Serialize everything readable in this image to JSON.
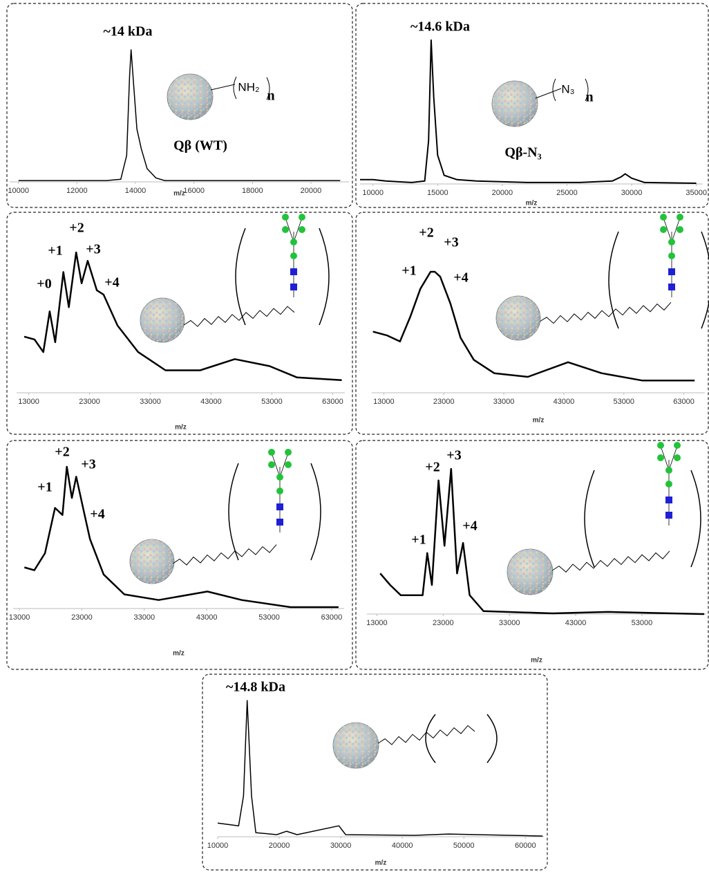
{
  "chart_data": [
    {
      "type": "line",
      "annotations": [
        "~14 kDa"
      ],
      "structure_labels": [
        "Qβ (WT)",
        "NH₂",
        "n"
      ],
      "xlabel": "m/z",
      "color": "#000000",
      "x": [
        10000,
        11000,
        12000,
        13000,
        13500,
        13700,
        13800,
        13850,
        13950,
        14050,
        14200,
        14400,
        14700,
        15000,
        16000,
        18000,
        20000,
        21000
      ],
      "values": [
        1,
        1,
        1,
        1,
        2,
        20,
        80,
        100,
        70,
        40,
        25,
        10,
        3,
        1,
        1,
        1,
        1,
        1
      ],
      "xlim": [
        9700,
        21300
      ],
      "xticks": [
        10000,
        12000,
        14000,
        16000,
        18000,
        20000
      ]
    },
    {
      "type": "line",
      "annotations": [
        "~14.6 kDa"
      ],
      "structure_labels": [
        "Qβ-N₃",
        "N₃",
        "n"
      ],
      "xlabel": "m/z",
      "color": "#000000",
      "x": [
        9000,
        10000,
        11000,
        12000,
        13000,
        14000,
        14300,
        14500,
        14700,
        15000,
        15500,
        16500,
        18000,
        22000,
        26000,
        28500,
        29200,
        29500,
        30000,
        31000,
        35000
      ],
      "values": [
        3,
        3,
        2,
        1.5,
        1,
        2,
        30,
        100,
        60,
        20,
        6,
        3,
        2,
        1,
        1,
        2,
        5,
        7,
        4,
        1,
        0.5
      ],
      "xlim": [
        9000,
        35500
      ],
      "xticks": [
        10000,
        15000,
        20000,
        25000,
        30000,
        35000
      ]
    },
    {
      "type": "line",
      "annotations": [
        "+0",
        "+1",
        "+2",
        "+3",
        "+4"
      ],
      "xlabel": "m/z",
      "color": "#000000",
      "x": [
        12250,
        13950,
        15400,
        16450,
        17350,
        18700,
        19600,
        20800,
        21700,
        22700,
        24200,
        25300,
        27600,
        31000,
        35500,
        41200,
        46900,
        52600,
        57100,
        64500
      ],
      "values": [
        40,
        38,
        29,
        58,
        36,
        86,
        61,
        100,
        78,
        94,
        73,
        70,
        48,
        29,
        16,
        16,
        24,
        19,
        11,
        9
      ],
      "xlim": [
        11000,
        65000
      ],
      "xticks": [
        13000,
        23000,
        33000,
        43000,
        53000,
        63000
      ]
    },
    {
      "type": "line",
      "annotations": [
        "+1",
        "+2",
        "+3",
        "+4"
      ],
      "xlabel": "m/z",
      "color": "#000000",
      "x": [
        11200,
        13500,
        15700,
        17400,
        19100,
        20800,
        21500,
        22400,
        24100,
        25800,
        28000,
        31400,
        37000,
        43700,
        49300,
        56100,
        64800
      ],
      "values": [
        50,
        47,
        42,
        62,
        85,
        99,
        99,
        95,
        73,
        45,
        27,
        16,
        13,
        25,
        16,
        10,
        10
      ],
      "xlim": [
        11000,
        66500
      ],
      "xticks": [
        13000,
        23000,
        33000,
        43000,
        53000,
        63000
      ]
    },
    {
      "type": "line",
      "annotations": [
        "+1",
        "+2",
        "+3",
        "+4"
      ],
      "xlabel": "m/z",
      "color": "#000000",
      "x": [
        13800,
        15400,
        17100,
        18700,
        19900,
        20600,
        21400,
        22100,
        23200,
        24300,
        26500,
        29800,
        35300,
        43100,
        48600,
        56400,
        64100
      ],
      "values": [
        29,
        27,
        39,
        71,
        66,
        100,
        78,
        93,
        71,
        49,
        24,
        10,
        6,
        12,
        6,
        1,
        1
      ],
      "xlim": [
        12000,
        65000
      ],
      "xticks": [
        13000,
        23000,
        33000,
        43000,
        53000,
        63000
      ]
    },
    {
      "type": "line",
      "annotations": [
        "+1",
        "+2",
        "+3",
        "+4"
      ],
      "xlabel": "m/z",
      "color": "#000000",
      "x": [
        13500,
        15000,
        16600,
        18700,
        19900,
        20600,
        21300,
        22300,
        23200,
        24200,
        25100,
        26000,
        27000,
        29100,
        39500,
        47900,
        62400
      ],
      "values": [
        28,
        20,
        13,
        13,
        13,
        42,
        20,
        92,
        47,
        100,
        28,
        49,
        13,
        2,
        0.5,
        1.5,
        0
      ],
      "xlim": [
        11500,
        62700
      ],
      "xticks": [
        13000,
        23000,
        33000,
        43000,
        53000
      ]
    },
    {
      "type": "line",
      "annotations": [
        "~14.8 kDa"
      ],
      "xlabel": "m/z",
      "color": "#000000",
      "x": [
        10000,
        11700,
        13400,
        14200,
        14800,
        15500,
        16200,
        19600,
        21200,
        22900,
        29700,
        30800,
        42000,
        47600,
        62800
      ],
      "values": [
        10,
        9,
        8,
        30,
        100,
        30,
        3,
        1.5,
        4,
        1.5,
        8,
        1.5,
        1,
        2,
        0.5
      ],
      "xlim": [
        10000,
        63000
      ],
      "xticks": [
        10000,
        20000,
        30000,
        40000,
        50000,
        60000
      ]
    }
  ]
}
